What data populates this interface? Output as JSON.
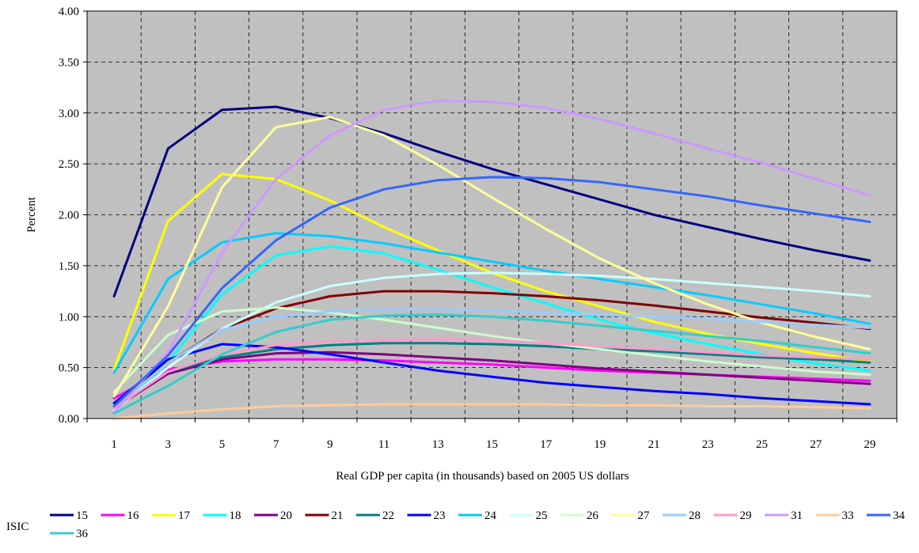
{
  "chart_data": {
    "type": "line",
    "title": "",
    "xlabel": "Real GDP per capita (in thousands) based on 2005 US dollars",
    "ylabel": "Percent",
    "legend_title": "ISIC",
    "x": [
      1,
      3,
      5,
      7,
      9,
      11,
      13,
      15,
      17,
      19,
      21,
      23,
      25,
      27,
      29
    ],
    "x_tick_labels": [
      "1",
      "3",
      "5",
      "7",
      "9",
      "11",
      "13",
      "15",
      "17",
      "19",
      "21",
      "23",
      "25",
      "27",
      "29"
    ],
    "y_tick_labels": [
      "0.00",
      "0.50",
      "1.00",
      "1.50",
      "2.00",
      "2.50",
      "3.00",
      "3.50",
      "4.00"
    ],
    "ylim": [
      0,
      4
    ],
    "grid": true,
    "plot_background": "#c0c0c0",
    "legend_position": "bottom",
    "series": [
      {
        "name": "15",
        "color": "#000080",
        "values": [
          1.2,
          2.65,
          3.03,
          3.06,
          2.95,
          2.8,
          2.62,
          2.45,
          2.3,
          2.15,
          2.0,
          1.88,
          1.76,
          1.65,
          1.55
        ]
      },
      {
        "name": "16",
        "color": "#ff00ff",
        "values": [
          0.2,
          0.48,
          0.56,
          0.58,
          0.58,
          0.57,
          0.55,
          0.53,
          0.5,
          0.47,
          0.45,
          0.43,
          0.41,
          0.39,
          0.37
        ]
      },
      {
        "name": "17",
        "color": "#ffff00",
        "values": [
          0.48,
          1.94,
          2.4,
          2.35,
          2.14,
          1.88,
          1.65,
          1.43,
          1.25,
          1.1,
          0.95,
          0.83,
          0.73,
          0.64,
          0.56
        ]
      },
      {
        "name": "18",
        "color": "#00ffff",
        "values": [
          0.07,
          0.55,
          1.22,
          1.6,
          1.69,
          1.62,
          1.46,
          1.29,
          1.13,
          0.97,
          0.84,
          0.73,
          0.63,
          0.54,
          0.47
        ]
      },
      {
        "name": "20",
        "color": "#800080",
        "values": [
          0.1,
          0.44,
          0.58,
          0.64,
          0.65,
          0.63,
          0.6,
          0.57,
          0.53,
          0.49,
          0.46,
          0.43,
          0.4,
          0.37,
          0.34
        ]
      },
      {
        "name": "21",
        "color": "#800000",
        "values": [
          0.15,
          0.55,
          0.88,
          1.08,
          1.2,
          1.25,
          1.25,
          1.23,
          1.2,
          1.16,
          1.11,
          1.05,
          0.99,
          0.94,
          0.88
        ]
      },
      {
        "name": "22",
        "color": "#008080",
        "values": [
          0.1,
          0.46,
          0.6,
          0.68,
          0.72,
          0.74,
          0.74,
          0.73,
          0.71,
          0.68,
          0.66,
          0.63,
          0.6,
          0.58,
          0.55
        ]
      },
      {
        "name": "23",
        "color": "#0000ff",
        "values": [
          0.15,
          0.58,
          0.73,
          0.7,
          0.63,
          0.55,
          0.47,
          0.41,
          0.35,
          0.31,
          0.27,
          0.24,
          0.2,
          0.17,
          0.14
        ]
      },
      {
        "name": "24",
        "color": "#00ccff",
        "values": [
          0.45,
          1.37,
          1.73,
          1.82,
          1.79,
          1.72,
          1.63,
          1.54,
          1.45,
          1.37,
          1.29,
          1.21,
          1.12,
          1.03,
          0.93
        ]
      },
      {
        "name": "25",
        "color": "#ccffff",
        "values": [
          0.08,
          0.5,
          0.88,
          1.14,
          1.3,
          1.38,
          1.42,
          1.43,
          1.42,
          1.4,
          1.37,
          1.33,
          1.29,
          1.25,
          1.2
        ]
      },
      {
        "name": "26",
        "color": "#ccffcc",
        "values": [
          0.26,
          0.82,
          1.05,
          1.09,
          1.04,
          0.97,
          0.89,
          0.81,
          0.74,
          0.68,
          0.62,
          0.56,
          0.51,
          0.46,
          0.43
        ]
      },
      {
        "name": "27",
        "color": "#ffff99",
        "values": [
          0.22,
          1.1,
          2.27,
          2.86,
          2.96,
          2.78,
          2.49,
          2.17,
          1.86,
          1.57,
          1.33,
          1.12,
          0.94,
          0.8,
          0.68
        ]
      },
      {
        "name": "28",
        "color": "#99ccff",
        "values": [
          0.1,
          0.55,
          0.87,
          1.0,
          1.05,
          1.07,
          1.07,
          1.06,
          1.04,
          1.02,
          1.0,
          0.98,
          0.95,
          0.92,
          0.89
        ]
      },
      {
        "name": "29",
        "color": "#ff99cc",
        "values": [
          0.1,
          0.46,
          0.63,
          0.72,
          0.76,
          0.77,
          0.78,
          0.77,
          0.74,
          0.71,
          0.68,
          0.65,
          0.62,
          0.6,
          0.58
        ]
      },
      {
        "name": "31",
        "color": "#cc99ff",
        "values": [
          0.06,
          0.65,
          1.63,
          2.35,
          2.78,
          3.03,
          3.12,
          3.11,
          3.05,
          2.94,
          2.8,
          2.65,
          2.51,
          2.35,
          2.19
        ]
      },
      {
        "name": "33",
        "color": "#ffcc99",
        "values": [
          0.0,
          0.05,
          0.09,
          0.12,
          0.13,
          0.14,
          0.14,
          0.14,
          0.14,
          0.13,
          0.13,
          0.12,
          0.12,
          0.11,
          0.1
        ]
      },
      {
        "name": "34",
        "color": "#3366ff",
        "values": [
          0.12,
          0.62,
          1.28,
          1.75,
          2.07,
          2.25,
          2.34,
          2.37,
          2.36,
          2.32,
          2.25,
          2.18,
          2.09,
          2.01,
          1.93
        ]
      },
      {
        "name": "36",
        "color": "#33cccc",
        "values": [
          0.05,
          0.32,
          0.63,
          0.85,
          0.97,
          1.01,
          1.02,
          1.0,
          0.96,
          0.91,
          0.86,
          0.81,
          0.76,
          0.7,
          0.64
        ]
      }
    ]
  }
}
